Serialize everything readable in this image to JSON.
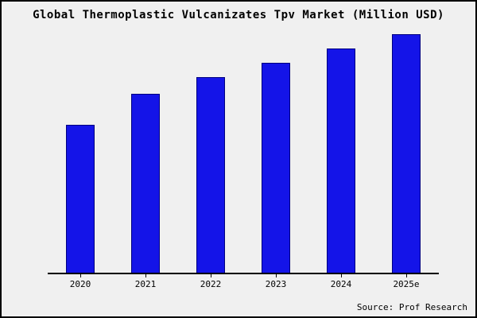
{
  "title": "Global Thermoplastic Vulcanizates Tpv Market (Million USD)",
  "source": "Source: Prof Research",
  "colors": {
    "background": "#f0f0f0",
    "frame_border": "#000000",
    "bar_fill": "#1414e8",
    "bar_border": "#000080",
    "axis": "#000000"
  },
  "chart_data": {
    "type": "bar",
    "title": "Global Thermoplastic Vulcanizates Tpv Market (Million USD)",
    "categories": [
      "2020",
      "2021",
      "2022",
      "2023",
      "2024",
      "2025e"
    ],
    "values": [
      62,
      75,
      82,
      88,
      94,
      100
    ],
    "xlabel": "",
    "ylabel": "",
    "ylim": [
      0,
      103
    ],
    "grid": false,
    "legend": null,
    "value_units": "relative (y-axis unlabeled in source image; max bar = 100)"
  }
}
